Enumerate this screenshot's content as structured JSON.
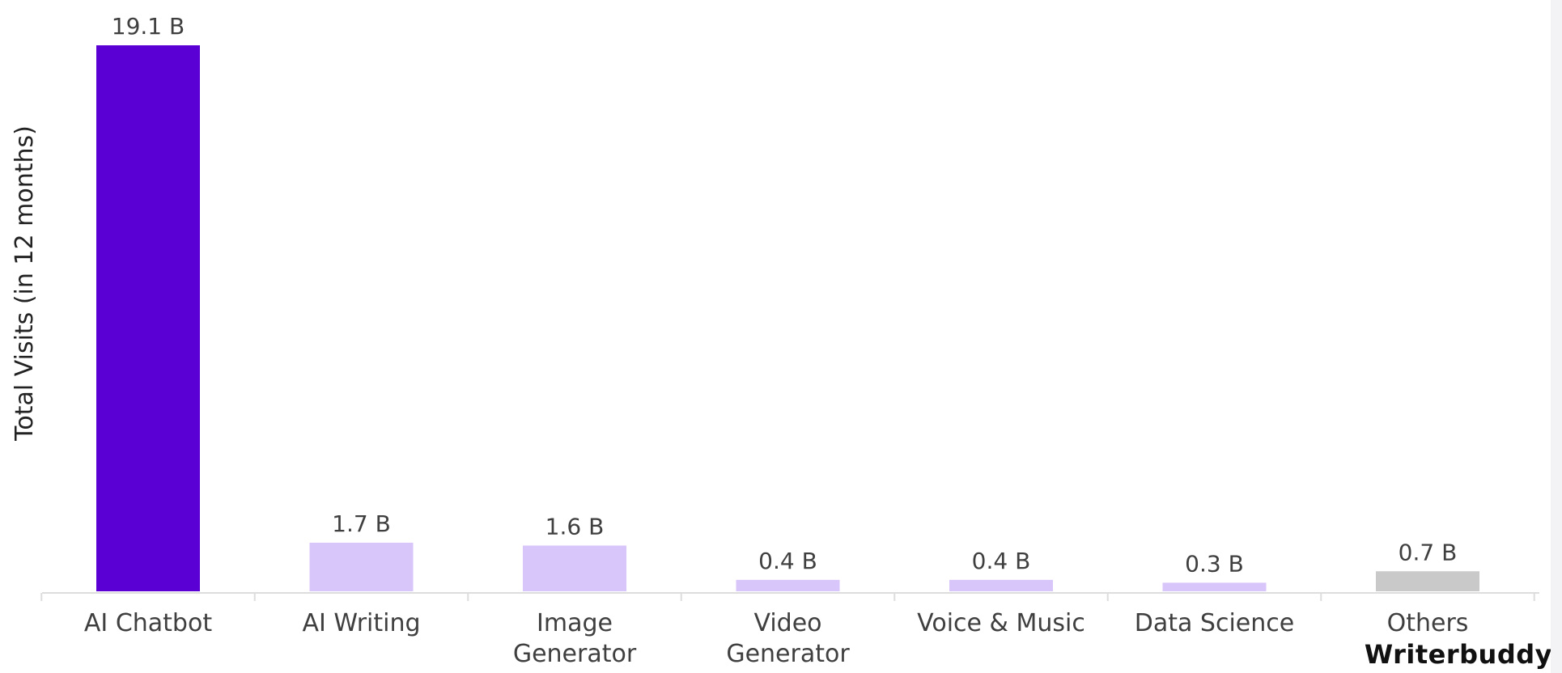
{
  "chart_data": {
    "type": "bar",
    "categories": [
      [
        "AI Chatbot"
      ],
      [
        "AI Writing"
      ],
      [
        "Image",
        "Generator"
      ],
      [
        "Video",
        "Generator"
      ],
      [
        "Voice & Music"
      ],
      [
        "Data Science"
      ],
      [
        "Others"
      ]
    ],
    "values": [
      19.1,
      1.7,
      1.6,
      0.4,
      0.4,
      0.3,
      0.7
    ],
    "value_labels": [
      "19.1 B",
      "1.7 B",
      "1.6 B",
      "0.4 B",
      "0.4 B",
      "0.3 B",
      "0.7 B"
    ],
    "colors": [
      "#5a00d4",
      "#d8c6fb",
      "#d8c6fb",
      "#d8c6fb",
      "#d8c6fb",
      "#d8c6fb",
      "#c9c9c9"
    ],
    "ylabel": "Total Visits (in 12 months)",
    "xlabel": "",
    "title": "",
    "ylim": [
      0,
      19.1
    ],
    "grid": false,
    "legend": "none"
  },
  "brand": {
    "text": "Writerbuddy"
  }
}
